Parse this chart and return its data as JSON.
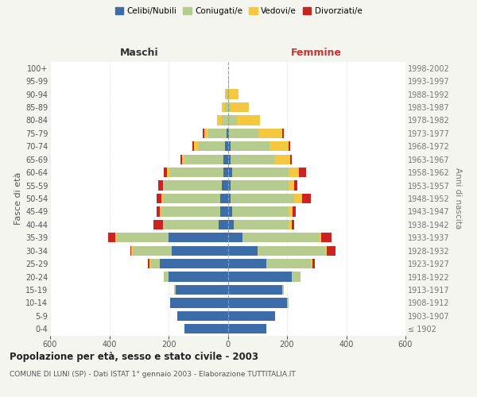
{
  "age_groups": [
    "100+",
    "95-99",
    "90-94",
    "85-89",
    "80-84",
    "75-79",
    "70-74",
    "65-69",
    "60-64",
    "55-59",
    "50-54",
    "45-49",
    "40-44",
    "35-39",
    "30-34",
    "25-29",
    "20-24",
    "15-19",
    "10-14",
    "5-9",
    "0-4"
  ],
  "birth_years": [
    "≤ 1902",
    "1903-1907",
    "1908-1912",
    "1913-1917",
    "1918-1922",
    "1923-1927",
    "1928-1932",
    "1933-1937",
    "1938-1942",
    "1943-1947",
    "1948-1952",
    "1953-1957",
    "1958-1962",
    "1963-1967",
    "1968-1972",
    "1973-1977",
    "1978-1982",
    "1983-1987",
    "1988-1992",
    "1993-1997",
    "1998-2002"
  ],
  "maschi": {
    "celibi": [
      0,
      0,
      0,
      0,
      0,
      5,
      10,
      15,
      15,
      20,
      25,
      25,
      30,
      200,
      190,
      230,
      200,
      175,
      195,
      170,
      145
    ],
    "coniugati": [
      0,
      0,
      5,
      10,
      20,
      60,
      90,
      130,
      180,
      195,
      195,
      200,
      185,
      175,
      130,
      30,
      15,
      5,
      0,
      0,
      0
    ],
    "vedovi": [
      0,
      0,
      5,
      10,
      15,
      15,
      15,
      10,
      10,
      5,
      5,
      5,
      5,
      5,
      5,
      5,
      0,
      0,
      0,
      0,
      0
    ],
    "divorziati": [
      0,
      0,
      0,
      0,
      0,
      5,
      5,
      5,
      10,
      15,
      15,
      10,
      30,
      25,
      5,
      5,
      0,
      0,
      0,
      0,
      0
    ]
  },
  "femmine": {
    "nubili": [
      0,
      0,
      0,
      0,
      0,
      5,
      10,
      10,
      15,
      10,
      10,
      15,
      20,
      50,
      100,
      130,
      215,
      185,
      200,
      160,
      130
    ],
    "coniugate": [
      0,
      0,
      5,
      10,
      30,
      100,
      130,
      150,
      190,
      195,
      215,
      190,
      185,
      260,
      230,
      150,
      30,
      5,
      5,
      0,
      0
    ],
    "vedove": [
      0,
      5,
      30,
      60,
      80,
      80,
      65,
      50,
      35,
      20,
      25,
      15,
      10,
      5,
      5,
      5,
      0,
      0,
      0,
      0,
      0
    ],
    "divorziate": [
      0,
      0,
      0,
      0,
      0,
      5,
      5,
      5,
      25,
      10,
      30,
      10,
      10,
      35,
      30,
      10,
      0,
      0,
      0,
      0,
      0
    ]
  },
  "colors": {
    "celibi": "#3d6da8",
    "coniugati": "#b5cc8e",
    "vedovi": "#f5c842",
    "divorziati": "#cc2222"
  },
  "title": "Popolazione per età, sesso e stato civile - 2003",
  "subtitle": "COMUNE DI LUNI (SP) - Dati ISTAT 1° gennaio 2003 - Elaborazione TUTTITALIA.IT",
  "xlabel_left": "Maschi",
  "xlabel_right": "Femmine",
  "ylabel": "Fasce di età",
  "ylabel_right": "Anni di nascita",
  "xlim": 600,
  "background_color": "#f5f5f0",
  "plot_bg": "#ffffff"
}
